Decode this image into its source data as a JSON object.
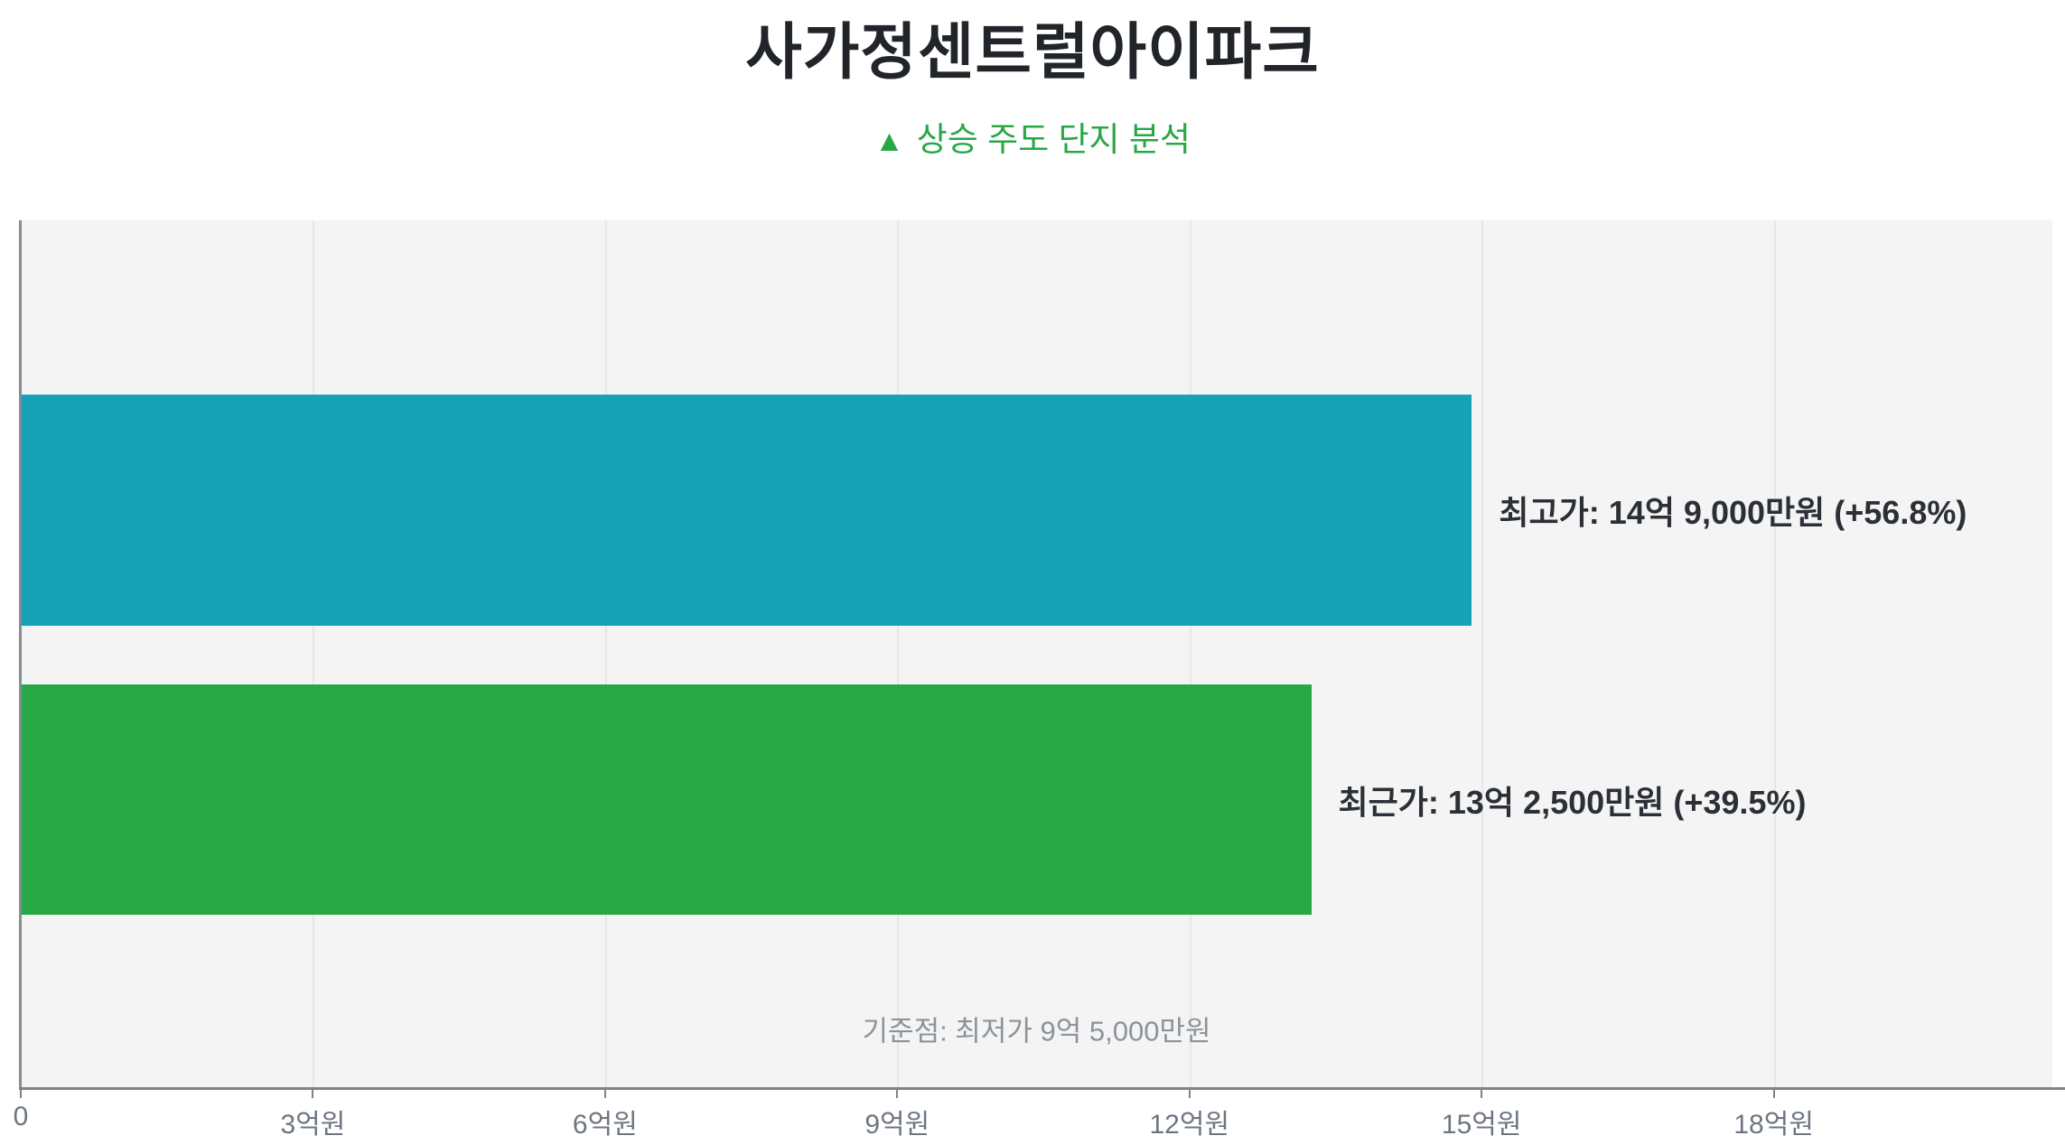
{
  "page": {
    "title": "사가정센트럴아이파크",
    "subtitle_marker": "▲",
    "subtitle": "상승 주도 단지 분석"
  },
  "colors": {
    "title": "#212529",
    "subtitle_green": "#28a745",
    "bar_highest": "#17a2b8",
    "bar_recent": "#28a745",
    "plot_background": "#f4f4f5",
    "axis_line": "#7d848c",
    "grid_line": "#e7e7e9",
    "tick_label": "#6d7680",
    "bar_label": "#2b3036",
    "annotation": "#8b939b"
  },
  "chart_data": {
    "type": "bar",
    "orientation": "horizontal",
    "title": "사가정센트럴아이파크",
    "subtitle": "▲ 상승 주도 단지 분석",
    "categories": [
      "최고가",
      "최근가"
    ],
    "values_eokwon": [
      14.9,
      13.25
    ],
    "series": [
      {
        "name": "최고가",
        "value_eokwon": 14.9,
        "label": "최고가: 14억 9,000만원 (+56.8%)",
        "pct_change": "+56.8%",
        "color": "#17a2b8"
      },
      {
        "name": "최근가",
        "value_eokwon": 13.25,
        "label": "최근가: 13억 2,500만원 (+39.5%)",
        "pct_change": "+39.5%",
        "color": "#28a745"
      }
    ],
    "baseline": {
      "label": "기준점: 최저가 9억 5,000만원",
      "value_eokwon": 9.5
    },
    "x_ticks": [
      0,
      3,
      6,
      9,
      12,
      15,
      18
    ],
    "x_tick_labels": [
      "0",
      "3억원",
      "6억원",
      "9억원",
      "12억원",
      "15억원",
      "18억원"
    ],
    "xlim": [
      0,
      20.86
    ],
    "grid": true,
    "legend": false
  }
}
